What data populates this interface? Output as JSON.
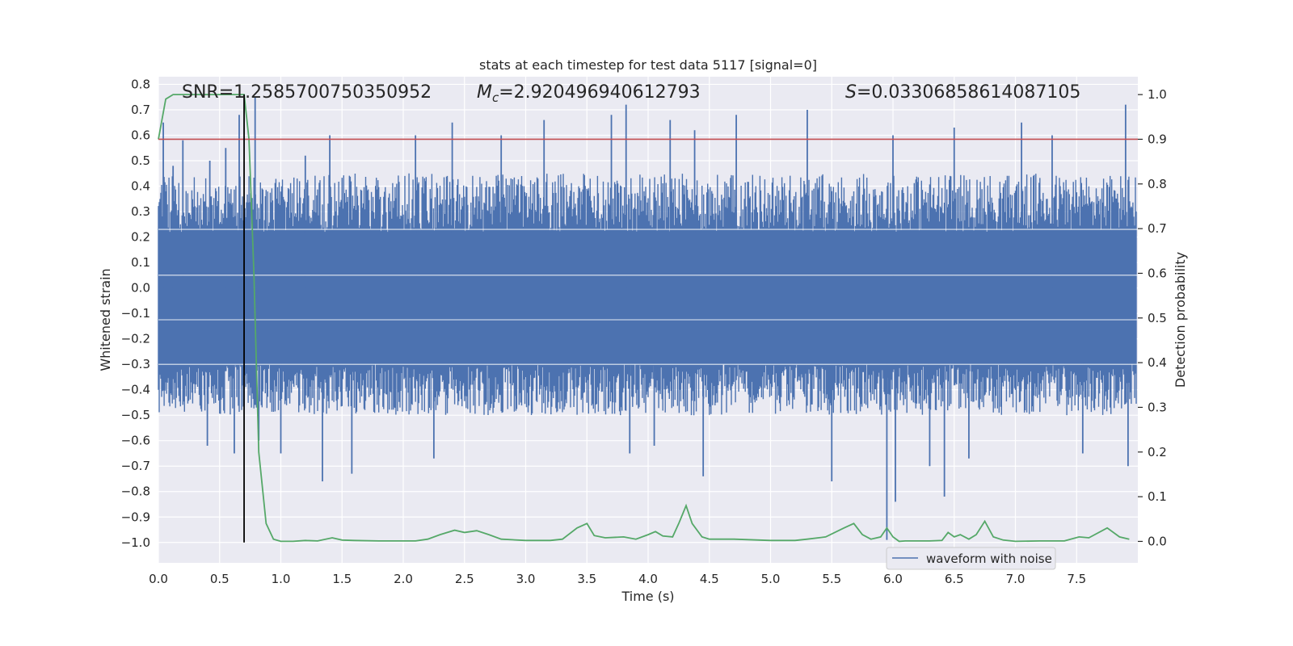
{
  "chart_data": {
    "type": "line",
    "title": "stats at each timestep for test data 5117 [signal=0]",
    "xlabel": "Time (s)",
    "ylabel": "Whitened strain",
    "y2label": "Detection probability",
    "xlim": [
      0.0,
      8.0
    ],
    "ylim": [
      -1.08,
      0.83
    ],
    "y2lim": [
      -0.048,
      1.04
    ],
    "xticks": [
      "0.0",
      "0.5",
      "1.0",
      "1.5",
      "2.0",
      "2.5",
      "3.0",
      "3.5",
      "4.0",
      "4.5",
      "5.0",
      "5.5",
      "6.0",
      "6.5",
      "7.0",
      "7.5"
    ],
    "yticks": [
      "0.8",
      "0.7",
      "0.6",
      "0.5",
      "0.4",
      "0.3",
      "0.2",
      "0.1",
      "0.0",
      "−0.1",
      "−0.2",
      "−0.3",
      "−0.4",
      "−0.5",
      "−0.6",
      "−0.7",
      "−0.8",
      "−0.9",
      "−1.0"
    ],
    "y2ticks": [
      "1.0",
      "0.9",
      "0.8",
      "0.7",
      "0.6",
      "0.5",
      "0.4",
      "0.3",
      "0.2",
      "0.1",
      "0.0"
    ],
    "grid": true,
    "legend_placement": "lower-right",
    "annotations": {
      "snr": "SNR=1.2585700750350952",
      "mc_sym": "M",
      "mc_sub": "c",
      "mc_val": "=2.920496940612793",
      "s_sym": "S",
      "s_val": "=0.03306858614087105"
    },
    "series": [
      {
        "name": "waveform with noise",
        "axis": "left",
        "color": "#4c72b0",
        "kind": "noise",
        "band": [
          -0.3,
          0.22
        ],
        "peaks": [
          [
            0.04,
            0.65
          ],
          [
            0.12,
            0.48
          ],
          [
            0.2,
            0.58
          ],
          [
            0.42,
            0.5
          ],
          [
            0.55,
            0.55
          ],
          [
            0.66,
            0.68
          ],
          [
            0.79,
            0.75
          ],
          [
            1.2,
            0.52
          ],
          [
            1.4,
            0.6
          ],
          [
            2.1,
            0.6
          ],
          [
            2.4,
            0.65
          ],
          [
            2.8,
            0.6
          ],
          [
            3.15,
            0.66
          ],
          [
            3.7,
            0.68
          ],
          [
            3.82,
            0.72
          ],
          [
            4.18,
            0.66
          ],
          [
            4.38,
            0.62
          ],
          [
            4.72,
            0.68
          ],
          [
            5.3,
            0.7
          ],
          [
            6.0,
            0.6
          ],
          [
            6.5,
            0.63
          ],
          [
            7.05,
            0.65
          ],
          [
            7.3,
            0.6
          ],
          [
            7.9,
            0.72
          ]
        ],
        "troughs": [
          [
            0.4,
            -0.62
          ],
          [
            0.62,
            -0.65
          ],
          [
            0.82,
            -0.6
          ],
          [
            1.0,
            -0.65
          ],
          [
            1.34,
            -0.76
          ],
          [
            1.58,
            -0.73
          ],
          [
            2.25,
            -0.67
          ],
          [
            3.85,
            -0.65
          ],
          [
            4.05,
            -0.62
          ],
          [
            4.45,
            -0.74
          ],
          [
            5.5,
            -0.76
          ],
          [
            5.95,
            -0.99
          ],
          [
            6.02,
            -0.84
          ],
          [
            6.3,
            -0.7
          ],
          [
            6.42,
            -0.82
          ],
          [
            6.62,
            -0.67
          ],
          [
            7.55,
            -0.65
          ],
          [
            7.92,
            -0.7
          ]
        ]
      },
      {
        "name": "detection probability",
        "axis": "right",
        "color": "#55a868",
        "x": [
          0.0,
          0.06,
          0.12,
          0.2,
          0.3,
          0.4,
          0.5,
          0.6,
          0.65,
          0.7,
          0.74,
          0.78,
          0.82,
          0.88,
          0.94,
          1.0,
          1.1,
          1.2,
          1.3,
          1.42,
          1.5,
          1.6,
          1.8,
          2.0,
          2.1,
          2.2,
          2.3,
          2.42,
          2.5,
          2.6,
          2.7,
          2.8,
          3.0,
          3.2,
          3.3,
          3.42,
          3.5,
          3.56,
          3.65,
          3.8,
          3.9,
          4.0,
          4.06,
          4.12,
          4.2,
          4.25,
          4.31,
          4.36,
          4.44,
          4.5,
          4.7,
          5.0,
          5.2,
          5.3,
          5.45,
          5.6,
          5.68,
          5.75,
          5.82,
          5.9,
          5.95,
          6.0,
          6.05,
          6.1,
          6.3,
          6.4,
          6.45,
          6.5,
          6.55,
          6.62,
          6.68,
          6.75,
          6.82,
          6.9,
          7.0,
          7.2,
          7.4,
          7.52,
          7.6,
          7.75,
          7.85,
          7.93
        ],
        "y": [
          0.9,
          0.99,
          1.0,
          1.0,
          1.0,
          1.0,
          1.0,
          1.0,
          1.0,
          1.0,
          0.9,
          0.6,
          0.2,
          0.04,
          0.005,
          0.0,
          0.0,
          0.002,
          0.001,
          0.008,
          0.003,
          0.002,
          0.001,
          0.001,
          0.001,
          0.005,
          0.015,
          0.025,
          0.02,
          0.024,
          0.015,
          0.005,
          0.002,
          0.002,
          0.005,
          0.03,
          0.04,
          0.013,
          0.008,
          0.01,
          0.005,
          0.015,
          0.022,
          0.012,
          0.01,
          0.04,
          0.08,
          0.04,
          0.01,
          0.005,
          0.005,
          0.002,
          0.002,
          0.005,
          0.01,
          0.03,
          0.04,
          0.015,
          0.005,
          0.01,
          0.03,
          0.01,
          0.0,
          0.001,
          0.001,
          0.002,
          0.02,
          0.01,
          0.015,
          0.005,
          0.015,
          0.045,
          0.01,
          0.003,
          0.0,
          0.001,
          0.001,
          0.01,
          0.008,
          0.03,
          0.01,
          0.005
        ]
      },
      {
        "name": "threshold",
        "axis": "right",
        "color": "#c44e52",
        "y": 0.9
      }
    ],
    "marker_line": {
      "x": 0.7,
      "y_from": -1.0,
      "y_to": 0.76,
      "color": "#000000"
    }
  }
}
